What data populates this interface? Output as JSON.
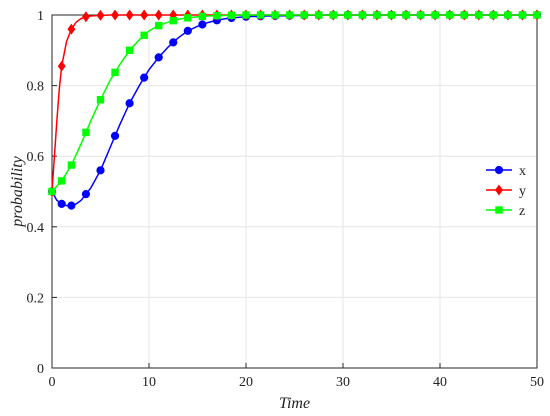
{
  "chart_data": {
    "type": "line",
    "title": "",
    "xlabel": "Time",
    "ylabel": "probability",
    "xlim": [
      0,
      50
    ],
    "ylim": [
      0,
      1
    ],
    "xticks": [
      0,
      10,
      20,
      30,
      40,
      50
    ],
    "yticks": [
      0,
      0.2,
      0.4,
      0.6,
      0.8,
      1
    ],
    "xtick_labels": [
      "0",
      "10",
      "20",
      "30",
      "40",
      "50"
    ],
    "ytick_labels": [
      "0",
      "0.2",
      "0.4",
      "0.6",
      "0.8",
      "1"
    ],
    "grid": true,
    "legend_position": "right",
    "series": [
      {
        "name": "x",
        "color": "#0000ff",
        "marker": "circle",
        "x": [
          0,
          0.5,
          1,
          1.5,
          2,
          2.5,
          3,
          4,
          5,
          6,
          7,
          8,
          9,
          10,
          11,
          12,
          13,
          14,
          15,
          16,
          17,
          18,
          19,
          20,
          22,
          24,
          26,
          28,
          30,
          35,
          40,
          45,
          50
        ],
        "y": [
          0.5,
          0.475,
          0.465,
          0.46,
          0.46,
          0.465,
          0.475,
          0.51,
          0.56,
          0.625,
          0.69,
          0.75,
          0.8,
          0.845,
          0.88,
          0.91,
          0.935,
          0.955,
          0.968,
          0.978,
          0.985,
          0.99,
          0.993,
          0.995,
          0.997,
          0.998,
          0.999,
          1,
          1,
          1,
          1,
          1,
          1
        ]
      },
      {
        "name": "y",
        "color": "#ff0000",
        "marker": "diamond",
        "x": [
          0,
          0.25,
          0.5,
          0.75,
          1,
          1.5,
          2,
          2.5,
          3,
          3.5,
          4,
          5,
          6,
          8,
          10,
          15,
          20,
          30,
          40,
          50
        ],
        "y": [
          0.5,
          0.6,
          0.7,
          0.79,
          0.855,
          0.925,
          0.96,
          0.98,
          0.99,
          0.995,
          0.997,
          0.999,
          1,
          1,
          1,
          1,
          1,
          1,
          1,
          1
        ]
      },
      {
        "name": "z",
        "color": "#00ff00",
        "marker": "square",
        "x": [
          0,
          1,
          2,
          3,
          4,
          5,
          6,
          7,
          8,
          9,
          10,
          11,
          12,
          13,
          14,
          15,
          16,
          17,
          18,
          20,
          22,
          25,
          30,
          40,
          50
        ],
        "y": [
          0.5,
          0.53,
          0.575,
          0.635,
          0.7,
          0.76,
          0.815,
          0.86,
          0.9,
          0.93,
          0.955,
          0.97,
          0.98,
          0.988,
          0.992,
          0.995,
          0.997,
          0.998,
          0.999,
          1,
          1,
          1,
          1,
          1,
          1
        ]
      }
    ],
    "marker_x": [
      0,
      1,
      2,
      3.5,
      5,
      6.5,
      8,
      9.5,
      11,
      12.5,
      14,
      15.5,
      17,
      18.5,
      20,
      21.5,
      23,
      24.5,
      26,
      27.5,
      29,
      30.5,
      32,
      33.5,
      35,
      36.5,
      38,
      39.5,
      41,
      42.5,
      44,
      45.5,
      47,
      48.5,
      50
    ]
  }
}
